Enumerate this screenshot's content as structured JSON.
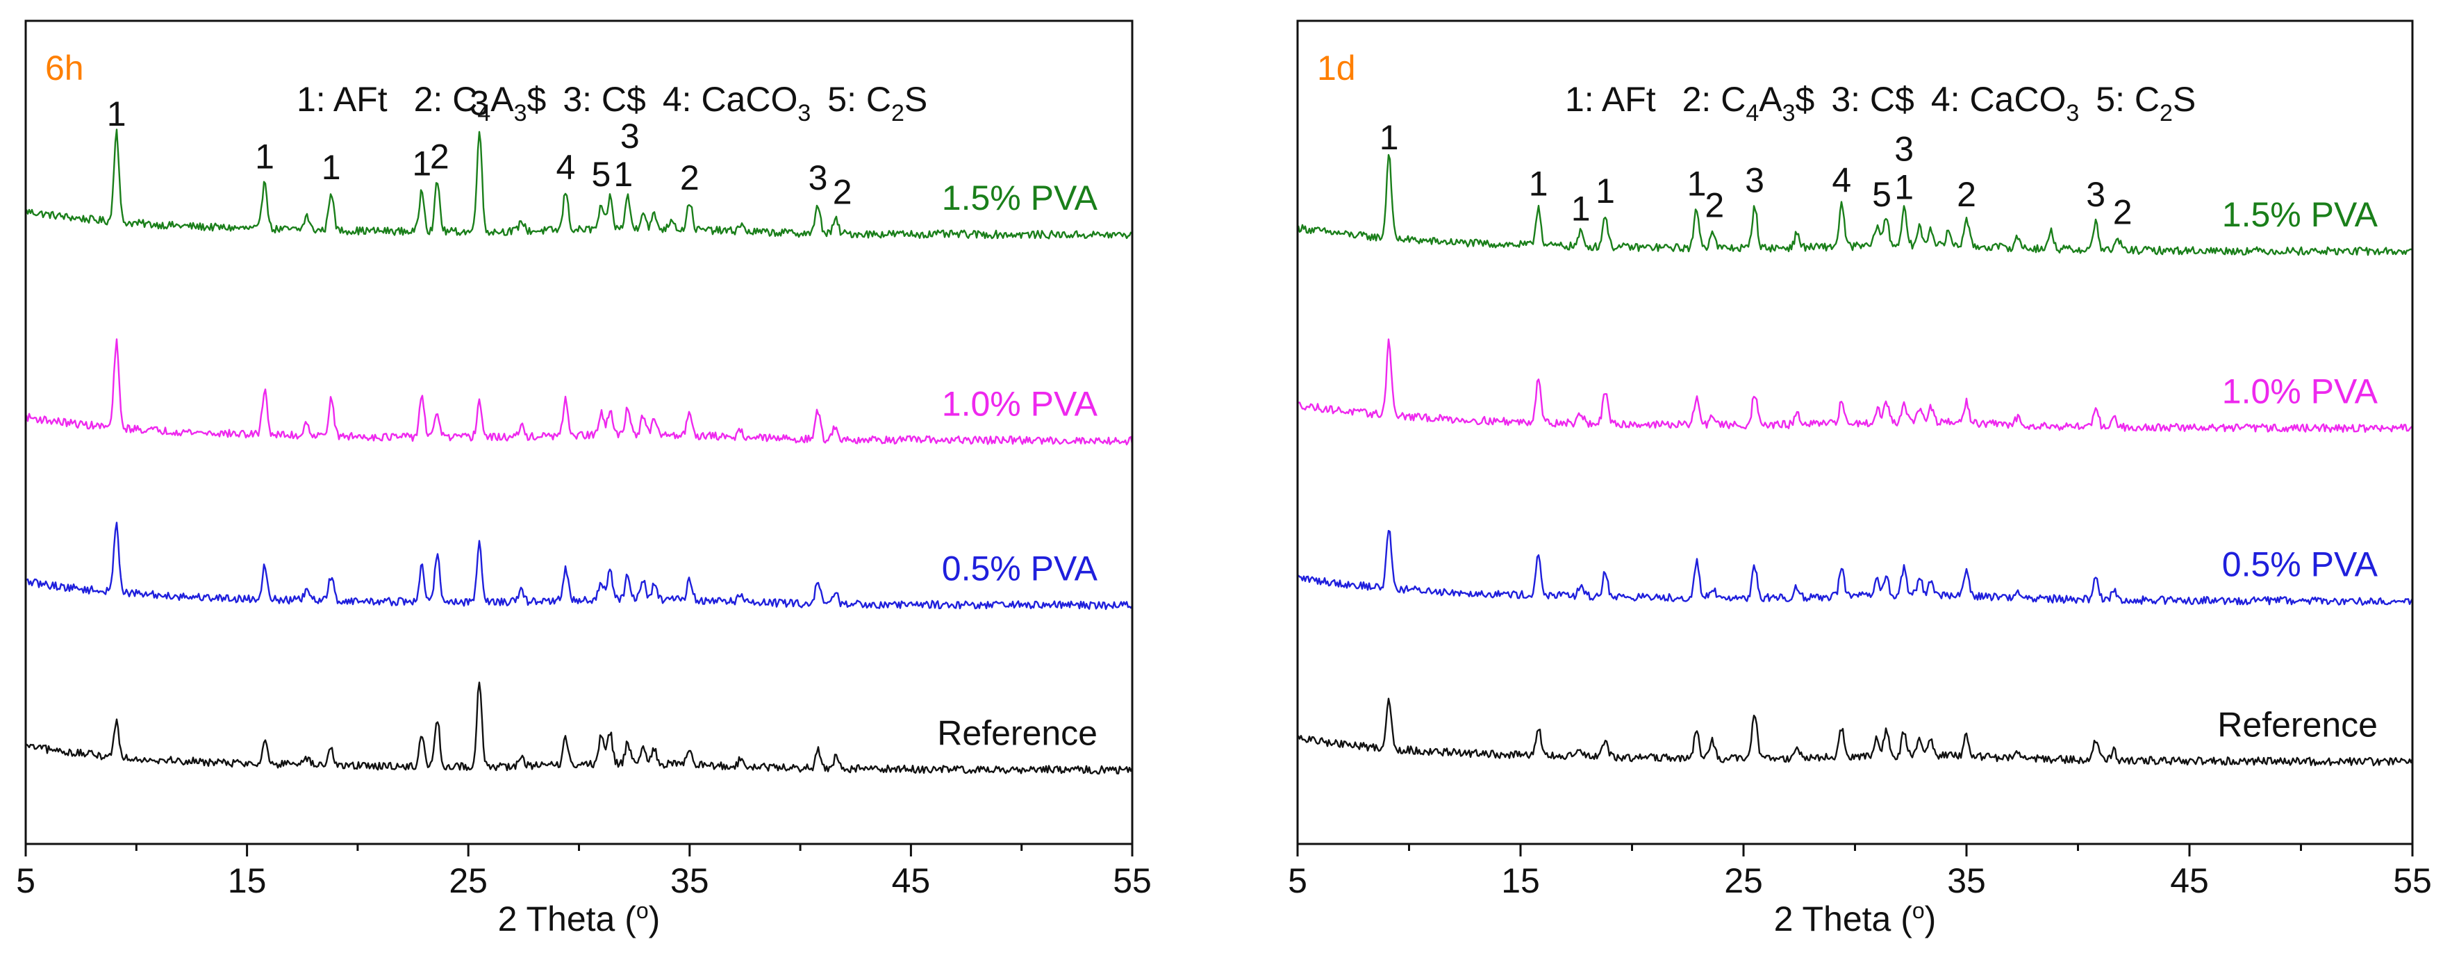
{
  "chart_data": [
    {
      "panel_label": "6h",
      "type": "line",
      "xlabel": "2 Theta (",
      "xlabel_unit": "o",
      "xlabel_close": ")",
      "xlim": [
        5,
        55
      ],
      "xticks": [
        5,
        15,
        25,
        35,
        45,
        55
      ],
      "legend_parts": {
        "p1": "1: AFt",
        "p2a": "2: C",
        "p2b": "4",
        "p2c": "A",
        "p2d": "3",
        "p2e": "$",
        "p3": "3: C$",
        "p4a": "4: CaCO",
        "p4b": "3",
        "p5a": "5: C",
        "p5b": "2",
        "p5c": "S"
      },
      "series": [
        {
          "name": "1.5% PVA",
          "color": "#1a7f1a",
          "baseline_rel": 0.255,
          "amp": 0.9,
          "peaks": [
            [
              9.1,
              0.26
            ],
            [
              15.8,
              0.14
            ],
            [
              17.7,
              0.04
            ],
            [
              18.8,
              0.11
            ],
            [
              22.9,
              0.12
            ],
            [
              23.6,
              0.14
            ],
            [
              25.5,
              0.29
            ],
            [
              27.4,
              0.03
            ],
            [
              29.4,
              0.11
            ],
            [
              31.0,
              0.06
            ],
            [
              31.4,
              0.09
            ],
            [
              32.2,
              0.09
            ],
            [
              32.9,
              0.05
            ],
            [
              33.4,
              0.04
            ],
            [
              34.2,
              0.03
            ],
            [
              35.0,
              0.08
            ],
            [
              37.3,
              0.02
            ],
            [
              40.8,
              0.08
            ],
            [
              41.6,
              0.04
            ]
          ],
          "peak_labels": [
            {
              "text": "1",
              "x": 9.1
            },
            {
              "text": "1",
              "x": 15.8
            },
            {
              "text": "1",
              "x": 18.8
            },
            {
              "text": "1",
              "x": 22.9
            },
            {
              "text": "2",
              "x": 23.7
            },
            {
              "text": "3",
              "x": 25.5
            },
            {
              "text": "4",
              "x": 29.4
            },
            {
              "text": "5",
              "x": 31.0
            },
            {
              "text": "1",
              "x": 32.0
            },
            {
              "text": "3",
              "x": 32.3,
              "upper": true
            },
            {
              "text": "2",
              "x": 35.0
            },
            {
              "text": "3",
              "x": 40.8
            },
            {
              "text": "2",
              "x": 41.9
            }
          ]
        },
        {
          "name": "1.0% PVA",
          "color": "#ee28ee",
          "baseline_rel": 0.505,
          "amp": 0.9,
          "peaks": [
            [
              9.1,
              0.24
            ],
            [
              15.8,
              0.13
            ],
            [
              17.7,
              0.04
            ],
            [
              18.8,
              0.11
            ],
            [
              22.9,
              0.12
            ],
            [
              23.6,
              0.07
            ],
            [
              25.5,
              0.1
            ],
            [
              27.4,
              0.03
            ],
            [
              29.4,
              0.1
            ],
            [
              31.0,
              0.06
            ],
            [
              31.4,
              0.07
            ],
            [
              32.2,
              0.08
            ],
            [
              32.9,
              0.05
            ],
            [
              33.4,
              0.04
            ],
            [
              35.0,
              0.07
            ],
            [
              37.3,
              0.02
            ],
            [
              40.8,
              0.08
            ],
            [
              41.6,
              0.04
            ]
          ],
          "peak_labels": []
        },
        {
          "name": "0.5% PVA",
          "color": "#1f1fdc",
          "baseline_rel": 0.705,
          "amp": 0.9,
          "peaks": [
            [
              9.1,
              0.2
            ],
            [
              15.8,
              0.1
            ],
            [
              17.7,
              0.03
            ],
            [
              18.8,
              0.07
            ],
            [
              22.9,
              0.1
            ],
            [
              23.6,
              0.14
            ],
            [
              25.5,
              0.17
            ],
            [
              27.4,
              0.03
            ],
            [
              29.4,
              0.09
            ],
            [
              31.0,
              0.05
            ],
            [
              31.4,
              0.08
            ],
            [
              32.2,
              0.07
            ],
            [
              32.9,
              0.05
            ],
            [
              33.4,
              0.04
            ],
            [
              35.0,
              0.06
            ],
            [
              37.3,
              0.02
            ],
            [
              40.8,
              0.07
            ],
            [
              41.6,
              0.03
            ]
          ],
          "peak_labels": []
        },
        {
          "name": "Reference",
          "color": "#111111",
          "baseline_rel": 0.905,
          "amp": 0.9,
          "peaks": [
            [
              9.1,
              0.1
            ],
            [
              15.8,
              0.07
            ],
            [
              17.7,
              0.02
            ],
            [
              18.8,
              0.05
            ],
            [
              22.9,
              0.09
            ],
            [
              23.6,
              0.13
            ],
            [
              25.5,
              0.24
            ],
            [
              27.4,
              0.03
            ],
            [
              29.4,
              0.08
            ],
            [
              31.0,
              0.08
            ],
            [
              31.4,
              0.09
            ],
            [
              32.2,
              0.06
            ],
            [
              32.9,
              0.05
            ],
            [
              33.4,
              0.04
            ],
            [
              35.0,
              0.05
            ],
            [
              37.3,
              0.02
            ],
            [
              40.8,
              0.05
            ],
            [
              41.6,
              0.03
            ]
          ],
          "peak_labels": []
        }
      ]
    },
    {
      "panel_label": "1d",
      "type": "line",
      "xlabel": "2 Theta (",
      "xlabel_unit": "o",
      "xlabel_close": ")",
      "xlim": [
        5,
        55
      ],
      "xticks": [
        5,
        15,
        25,
        35,
        45,
        55
      ],
      "legend_parts": {
        "p1": "1: AFt",
        "p2a": "2: C",
        "p2b": "4",
        "p2c": "A",
        "p2d": "3",
        "p2e": "$",
        "p3": "3: C$",
        "p4a": "4: CaCO",
        "p4b": "3",
        "p5a": "5: C",
        "p5b": "2",
        "p5c": "S"
      },
      "series": [
        {
          "name": "1.5% PVA",
          "color": "#1a7f1a",
          "baseline_rel": 0.275,
          "amp": 0.9,
          "peaks": [
            [
              9.1,
              0.24
            ],
            [
              15.8,
              0.11
            ],
            [
              17.7,
              0.04
            ],
            [
              18.8,
              0.09
            ],
            [
              22.9,
              0.11
            ],
            [
              23.6,
              0.05
            ],
            [
              25.5,
              0.12
            ],
            [
              27.4,
              0.04
            ],
            [
              29.4,
              0.12
            ],
            [
              31.0,
              0.06
            ],
            [
              31.4,
              0.08
            ],
            [
              32.2,
              0.1
            ],
            [
              32.9,
              0.05
            ],
            [
              33.4,
              0.05
            ],
            [
              34.2,
              0.04
            ],
            [
              35.0,
              0.08
            ],
            [
              37.3,
              0.03
            ],
            [
              38.8,
              0.05
            ],
            [
              40.8,
              0.08
            ],
            [
              41.8,
              0.03
            ]
          ],
          "peak_labels": [
            {
              "text": "1",
              "x": 9.1
            },
            {
              "text": "1",
              "x": 15.8
            },
            {
              "text": "1",
              "x": 17.7,
              "low": true
            },
            {
              "text": "1",
              "x": 18.8
            },
            {
              "text": "1",
              "x": 22.9
            },
            {
              "text": "2",
              "x": 23.7,
              "low": true
            },
            {
              "text": "3",
              "x": 25.5
            },
            {
              "text": "4",
              "x": 29.4
            },
            {
              "text": "5",
              "x": 31.2
            },
            {
              "text": "1",
              "x": 32.2
            },
            {
              "text": "3",
              "x": 32.2,
              "upper": true
            },
            {
              "text": "2",
              "x": 35.0
            },
            {
              "text": "3",
              "x": 40.8
            },
            {
              "text": "2",
              "x": 42.0,
              "low": true
            }
          ]
        },
        {
          "name": "1.0% PVA",
          "color": "#ee28ee",
          "baseline_rel": 0.49,
          "amp": 0.9,
          "peaks": [
            [
              9.1,
              0.21
            ],
            [
              15.8,
              0.13
            ],
            [
              17.7,
              0.03
            ],
            [
              18.8,
              0.09
            ],
            [
              22.9,
              0.08
            ],
            [
              23.6,
              0.03
            ],
            [
              25.5,
              0.09
            ],
            [
              27.4,
              0.03
            ],
            [
              29.4,
              0.06
            ],
            [
              31.0,
              0.04
            ],
            [
              31.4,
              0.06
            ],
            [
              32.2,
              0.06
            ],
            [
              32.9,
              0.04
            ],
            [
              33.4,
              0.04
            ],
            [
              35.0,
              0.06
            ],
            [
              37.3,
              0.02
            ],
            [
              40.8,
              0.06
            ],
            [
              41.6,
              0.03
            ]
          ],
          "peak_labels": []
        },
        {
          "name": "0.5% PVA",
          "color": "#1f1fdc",
          "baseline_rel": 0.7,
          "amp": 0.9,
          "peaks": [
            [
              9.1,
              0.17
            ],
            [
              15.8,
              0.11
            ],
            [
              17.7,
              0.03
            ],
            [
              18.8,
              0.07
            ],
            [
              22.9,
              0.1
            ],
            [
              23.6,
              0.03
            ],
            [
              25.5,
              0.09
            ],
            [
              27.4,
              0.03
            ],
            [
              29.4,
              0.08
            ],
            [
              31.0,
              0.04
            ],
            [
              31.4,
              0.05
            ],
            [
              32.2,
              0.08
            ],
            [
              32.9,
              0.05
            ],
            [
              33.4,
              0.04
            ],
            [
              35.0,
              0.08
            ],
            [
              37.3,
              0.02
            ],
            [
              40.8,
              0.06
            ],
            [
              41.6,
              0.03
            ]
          ],
          "peak_labels": []
        },
        {
          "name": "Reference",
          "color": "#111111",
          "baseline_rel": 0.895,
          "amp": 0.9,
          "peaks": [
            [
              9.1,
              0.14
            ],
            [
              15.8,
              0.08
            ],
            [
              17.7,
              0.02
            ],
            [
              18.8,
              0.05
            ],
            [
              22.9,
              0.08
            ],
            [
              23.6,
              0.05
            ],
            [
              25.5,
              0.13
            ],
            [
              27.4,
              0.03
            ],
            [
              29.4,
              0.08
            ],
            [
              31.0,
              0.05
            ],
            [
              31.4,
              0.07
            ],
            [
              32.2,
              0.07
            ],
            [
              32.9,
              0.05
            ],
            [
              33.4,
              0.04
            ],
            [
              35.0,
              0.06
            ],
            [
              37.3,
              0.02
            ],
            [
              40.8,
              0.06
            ],
            [
              41.6,
              0.03
            ]
          ],
          "peak_labels": []
        }
      ]
    }
  ]
}
